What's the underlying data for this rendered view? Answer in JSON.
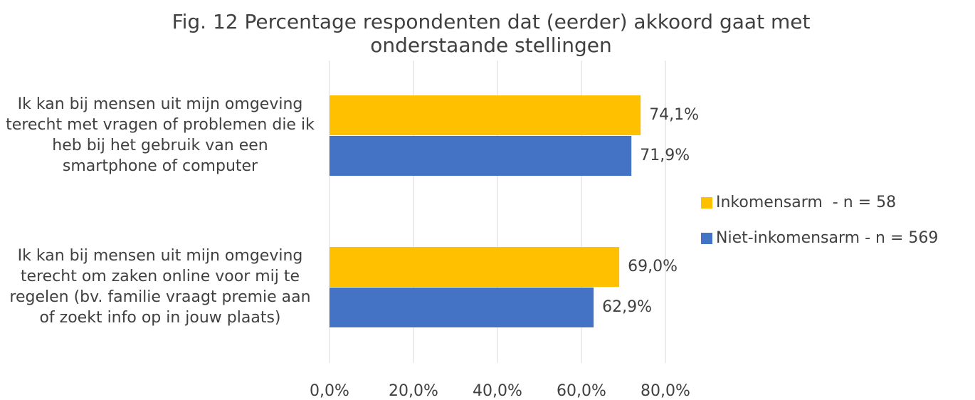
{
  "chart_data": {
    "type": "barh",
    "title": "Fig. 12 Percentage respondenten dat (eerder) akkoord gaat met onderstaande stellingen",
    "categories": [
      "Ik kan bij mensen uit mijn omgeving terecht met vragen of problemen die ik heb bij het gebruik van een smartphone of computer",
      "Ik kan bij mensen uit mijn omgeving terecht om zaken online voor mij te regelen (bv. familie vraagt premie aan of zoekt info op in jouw plaats)"
    ],
    "series": [
      {
        "name": "Inkomensarm  - n = 58",
        "color": "#FFC000",
        "values": [
          74.1,
          69.0
        ],
        "value_labels": [
          "74,1%",
          "69,0%"
        ]
      },
      {
        "name": "Niet-inkomensarm - n = 569",
        "color": "#4472C4",
        "values": [
          71.9,
          62.9
        ],
        "value_labels": [
          "71,9%",
          "62,9%"
        ]
      }
    ],
    "xlim": [
      0,
      80
    ],
    "xticks": [
      {
        "value": 0,
        "label": "0,0%"
      },
      {
        "value": 20,
        "label": "20,0%"
      },
      {
        "value": 40,
        "label": "40,0%"
      },
      {
        "value": 60,
        "label": "60,0%"
      },
      {
        "value": 80,
        "label": "80,0%"
      }
    ],
    "grid": true,
    "legend": "right"
  }
}
